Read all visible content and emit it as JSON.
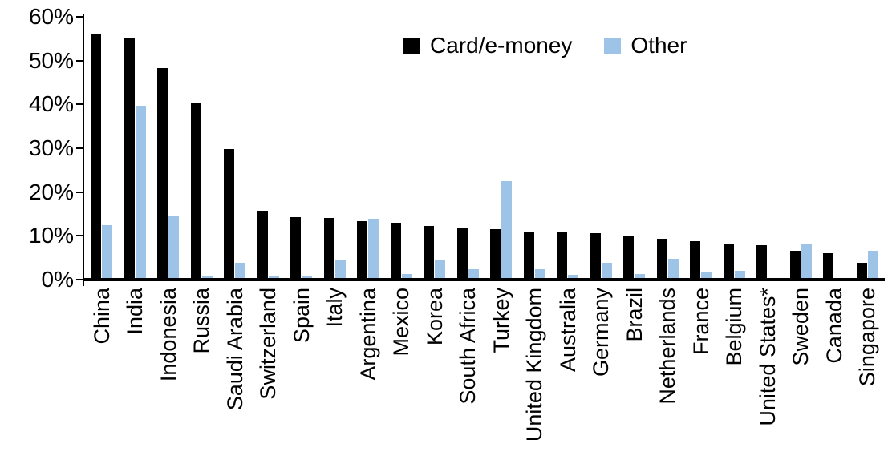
{
  "legend": {
    "items": [
      {
        "label": "Card/e-money",
        "color": "#000000"
      },
      {
        "label": "Other",
        "color": "#9DC3E6"
      }
    ]
  },
  "chart_data": {
    "type": "bar",
    "title": "",
    "xlabel": "",
    "ylabel": "",
    "ylim": [
      0,
      60
    ],
    "y_ticks": [
      "0%",
      "10%",
      "20%",
      "30%",
      "40%",
      "50%",
      "60%"
    ],
    "grid": false,
    "legend_position": "top-center",
    "categories": [
      "China",
      "India",
      "Indonesia",
      "Russia",
      "Saudi Arabia",
      "Switzerland",
      "Spain",
      "Italy",
      "Argentina",
      "Mexico",
      "Korea",
      "South Africa",
      "Turkey",
      "United Kingdom",
      "Australia",
      "Germany",
      "Brazil",
      "Netherlands",
      "France",
      "Belgium",
      "United States*",
      "Sweden",
      "Canada",
      "Singapore"
    ],
    "series": [
      {
        "name": "Card/e-money",
        "color": "#000000",
        "values": [
          56.2,
          55.0,
          48.3,
          40.5,
          29.8,
          15.7,
          14.2,
          14.1,
          13.4,
          13.0,
          12.2,
          11.7,
          11.6,
          11.0,
          10.8,
          10.6,
          10.0,
          9.3,
          8.7,
          8.2,
          7.9,
          6.6,
          6.0,
          3.9
        ]
      },
      {
        "name": "Other",
        "color": "#9DC3E6",
        "values": [
          12.4,
          39.7,
          14.6,
          1.0,
          3.9,
          0.8,
          0.9,
          4.6,
          13.9,
          1.3,
          4.5,
          2.4,
          22.5,
          2.3,
          1.1,
          3.9,
          1.2,
          4.8,
          1.6,
          2.0,
          0.3,
          8.1,
          0.0,
          6.6
        ]
      }
    ]
  }
}
